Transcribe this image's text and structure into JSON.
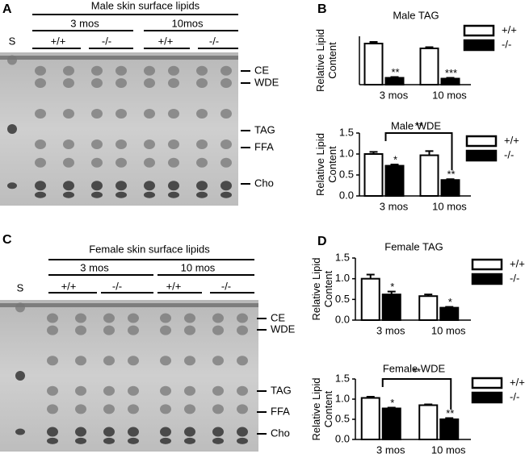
{
  "panels": [
    {
      "letter": "A",
      "title": "Male skin surface lipids",
      "ages": [
        "3 mos",
        "10mos"
      ],
      "genotypes": [
        "+/+",
        "-/-",
        "+/+",
        "-/-"
      ],
      "standard": "S",
      "bands": [
        "CE",
        "WDE",
        "TAG",
        "FFA",
        "Cho"
      ]
    },
    {
      "letter": "C",
      "title": "Female skin surface lipids",
      "ages": [
        "3 mos",
        "10 mos"
      ],
      "genotypes": [
        "+/+",
        "-/-",
        "+/+",
        "-/-"
      ],
      "standard": "S",
      "bands": [
        "CE",
        "WDE",
        "TAG",
        "FFA",
        "Cho"
      ]
    }
  ],
  "chart_letters": [
    "B",
    "D"
  ],
  "chart_data": [
    {
      "type": "bar",
      "title": "Male TAG",
      "ylabel": [
        "Relative Lipid",
        "Content"
      ],
      "categories": [
        "3 mos",
        "10 mos"
      ],
      "ylim": [
        0,
        1.2
      ],
      "series": [
        {
          "name": "+/+",
          "color": "#ffffff",
          "values": [
            1.02,
            0.9
          ],
          "errors": [
            0.04,
            0.03
          ]
        },
        {
          "name": "-/-",
          "color": "#000000",
          "values": [
            0.17,
            0.15
          ],
          "errors": [
            0.02,
            0.02
          ],
          "significance": [
            "**",
            "***"
          ]
        }
      ]
    },
    {
      "type": "bar",
      "title": "Male WDE",
      "ylabel": [
        "Relative Lipid",
        "Content"
      ],
      "categories": [
        "3 mos",
        "10 mos"
      ],
      "ylim": [
        0,
        1.5
      ],
      "yticks": [
        {
          "value": 0,
          "label": "0.0"
        },
        {
          "value": 0.5,
          "label": "0.5"
        },
        {
          "value": 1,
          "label": "1.0"
        },
        {
          "value": 1.5,
          "label": "1.5"
        }
      ],
      "bracket": "**",
      "series": [
        {
          "name": "+/+",
          "color": "#ffffff",
          "values": [
            1.0,
            0.97
          ],
          "errors": [
            0.05,
            0.1
          ]
        },
        {
          "name": "-/-",
          "color": "#000000",
          "values": [
            0.72,
            0.38
          ],
          "errors": [
            0.03,
            0.02
          ],
          "significance": [
            "*",
            "**"
          ]
        }
      ]
    },
    {
      "type": "bar",
      "title": "Female TAG",
      "ylabel": [
        "Relative Lipid",
        "Content"
      ],
      "categories": [
        "3 mos",
        "10 mos"
      ],
      "ylim": [
        0,
        1.5
      ],
      "yticks": [
        {
          "value": 0,
          "label": "0.0"
        },
        {
          "value": 0.5,
          "label": "0.5"
        },
        {
          "value": 1,
          "label": "1.0"
        },
        {
          "value": 1.5,
          "label": "1.5"
        }
      ],
      "series": [
        {
          "name": "+/+",
          "color": "#ffffff",
          "values": [
            1.0,
            0.58
          ],
          "errors": [
            0.1,
            0.04
          ]
        },
        {
          "name": "-/-",
          "color": "#000000",
          "values": [
            0.62,
            0.3
          ],
          "errors": [
            0.07,
            0.02
          ],
          "significance": [
            "*",
            "*"
          ]
        }
      ]
    },
    {
      "type": "bar",
      "title": "Female WDE",
      "ylabel": [
        "Relative Lipid",
        "Content"
      ],
      "categories": [
        "3 mos",
        "10 mos"
      ],
      "ylim": [
        0,
        1.5
      ],
      "yticks": [
        {
          "value": 0,
          "label": "0.0"
        },
        {
          "value": 0.5,
          "label": "0.5"
        },
        {
          "value": 1,
          "label": "1.0"
        },
        {
          "value": 1.5,
          "label": "1.5"
        }
      ],
      "bracket": "**",
      "series": [
        {
          "name": "+/+",
          "color": "#ffffff",
          "values": [
            1.03,
            0.85
          ],
          "errors": [
            0.03,
            0.02
          ]
        },
        {
          "name": "-/-",
          "color": "#000000",
          "values": [
            0.77,
            0.5
          ],
          "errors": [
            0.02,
            0.03
          ],
          "significance": [
            "*",
            "**"
          ]
        }
      ]
    }
  ]
}
